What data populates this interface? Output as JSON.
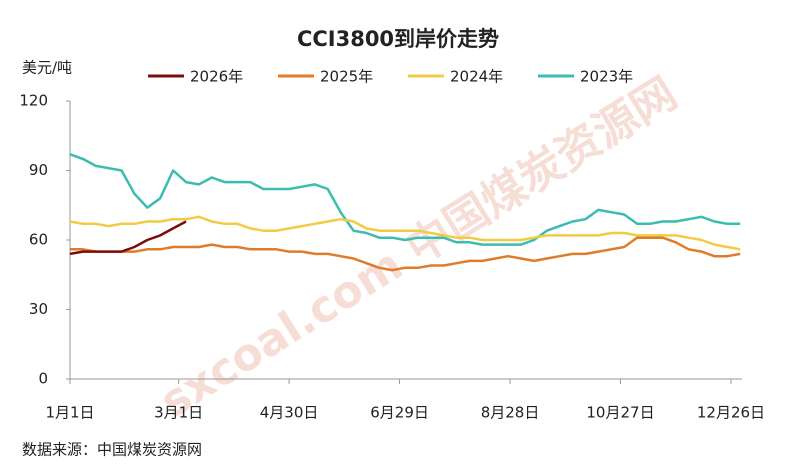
{
  "chart_data": {
    "type": "line",
    "title": "CCI3800到岸价走势",
    "y_label": "美元/吨",
    "source": "数据来源：中国煤炭资源网",
    "watermark": "sxcoal.com 中国煤炭资源网",
    "x": [
      0,
      7,
      14,
      21,
      28,
      35,
      42,
      49,
      56,
      63,
      70,
      77,
      84,
      91,
      98,
      105,
      112,
      119,
      126,
      133,
      140,
      147,
      154,
      161,
      168,
      175,
      182,
      189,
      196,
      203,
      210,
      217,
      224,
      231,
      238,
      245,
      252,
      259,
      266,
      273,
      280,
      287,
      294,
      301,
      308,
      315,
      322,
      329,
      336,
      343,
      350,
      357,
      364
    ],
    "xlim": [
      0,
      365
    ],
    "xticks": [
      {
        "value": 0,
        "label": "1月1日"
      },
      {
        "value": 59,
        "label": "3月1日"
      },
      {
        "value": 119,
        "label": "4月30日"
      },
      {
        "value": 179,
        "label": "6月29日"
      },
      {
        "value": 239,
        "label": "8月28日"
      },
      {
        "value": 299,
        "label": "10月27日"
      },
      {
        "value": 359,
        "label": "12月26日"
      }
    ],
    "ylim": [
      0,
      120
    ],
    "yticks": [
      0,
      30,
      60,
      90,
      120
    ],
    "grid": false,
    "legend": "top",
    "series": [
      {
        "name": "2026年",
        "color": "#7b0d0d",
        "values": [
          54,
          55,
          55,
          55,
          55,
          57,
          60,
          62,
          65,
          68,
          null,
          null,
          null,
          null,
          null,
          null,
          null,
          null,
          null,
          null,
          null,
          null,
          null,
          null,
          null,
          null,
          null,
          null,
          null,
          null,
          null,
          null,
          null,
          null,
          null,
          null,
          null,
          null,
          null,
          null,
          null,
          null,
          null,
          null,
          null,
          null,
          null,
          null,
          null,
          null,
          null,
          null,
          null
        ]
      },
      {
        "name": "2025年",
        "color": "#e07b2a",
        "values": [
          56,
          56,
          55,
          55,
          55,
          55,
          56,
          56,
          57,
          57,
          57,
          58,
          57,
          57,
          56,
          56,
          56,
          55,
          55,
          54,
          54,
          53,
          52,
          50,
          48,
          47,
          48,
          48,
          49,
          49,
          50,
          51,
          51,
          52,
          53,
          52,
          51,
          52,
          53,
          54,
          54,
          55,
          56,
          57,
          61,
          61,
          61,
          59,
          56,
          55,
          53,
          53,
          54
        ]
      },
      {
        "name": "2024年",
        "color": "#f2cb45",
        "values": [
          68,
          67,
          67,
          66,
          67,
          67,
          68,
          68,
          69,
          69,
          70,
          68,
          67,
          67,
          65,
          64,
          64,
          65,
          66,
          67,
          68,
          69,
          68,
          65,
          64,
          64,
          64,
          64,
          63,
          62,
          61,
          61,
          60,
          60,
          60,
          60,
          61,
          62,
          62,
          62,
          62,
          62,
          63,
          63,
          62,
          62,
          62,
          62,
          61,
          60,
          58,
          57,
          56
        ]
      },
      {
        "name": "2023年",
        "color": "#3cbcb0",
        "values": [
          97,
          95,
          92,
          91,
          90,
          80,
          74,
          78,
          90,
          85,
          84,
          87,
          85,
          85,
          85,
          82,
          82,
          82,
          83,
          84,
          82,
          72,
          64,
          63,
          61,
          61,
          60,
          61,
          61,
          61,
          59,
          59,
          58,
          58,
          58,
          58,
          60,
          64,
          66,
          68,
          69,
          73,
          72,
          71,
          67,
          67,
          68,
          68,
          69,
          70,
          68,
          67,
          67
        ]
      }
    ]
  }
}
